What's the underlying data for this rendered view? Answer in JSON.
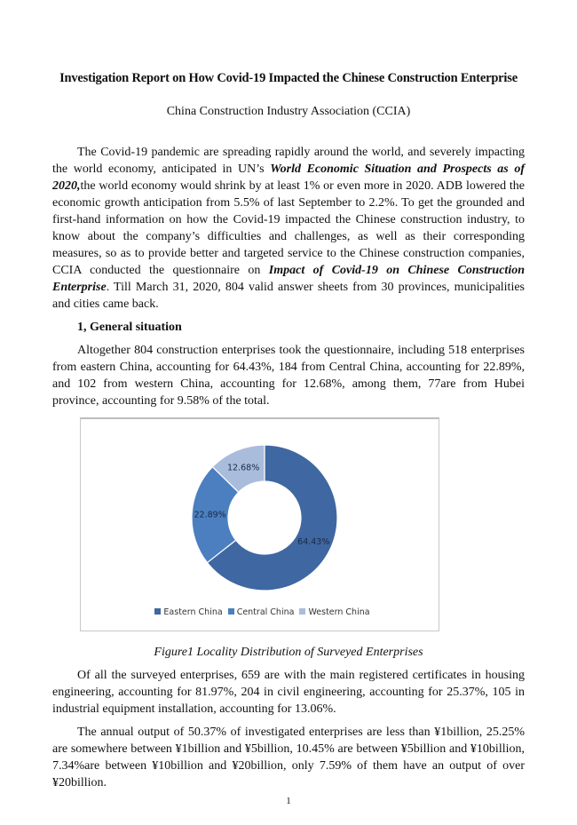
{
  "title": "Investigation Report on How Covid-19 Impacted the Chinese Construction Enterprise",
  "subtitle": "China Construction Industry Association (CCIA)",
  "intro": {
    "a": "The Covid-19 pandemic are spreading rapidly around the world, and severely impacting the world economy, anticipated in UN’s ",
    "b": "World Economic Situation and Prospects as of 2020,",
    "c": "the world economy would shrink by at least 1% or even more in 2020. ADB lowered the economic growth anticipation from 5.5% of last September to 2.2%. To get the grounded and first-hand information on how the Covid-19 impacted the Chinese construction industry, to know about the company’s difficulties and challenges, as well as their corresponding measures, so as to provide better and targeted service to the Chinese construction companies, CCIA conducted the questionnaire on ",
    "d": "Impact of Covid-19 on Chinese Construction Enterprise",
    "e": ". Till March 31, 2020, 804 valid answer sheets from 30 provinces, municipalities and cities came back."
  },
  "section1_heading": "1, General situation",
  "section1_para": "Altogether 804 construction enterprises took the questionnaire, including 518 enterprises from eastern China, accounting for 64.43%, 184 from Central China, accounting for 22.89%, and 102 from western China, accounting for 12.68%, among them, 77are from Hubei province, accounting for 9.58% of the total.",
  "chart_data": {
    "type": "pie",
    "subtype": "donut",
    "categories": [
      "Eastern China",
      "Central China",
      "Western China"
    ],
    "values": [
      64.43,
      22.89,
      12.68
    ],
    "labels": [
      "64.43%",
      "22.89%",
      "12.68%"
    ],
    "colors": [
      "#3f67a2",
      "#4b7fc0",
      "#a9bcdc"
    ],
    "legend_position": "bottom"
  },
  "caption": "Figure1 Locality Distribution of Surveyed Enterprises",
  "para3": "Of all the surveyed enterprises, 659 are with the main registered certificates in housing engineering, accounting for 81.97%, 204 in civil engineering, accounting for 25.37%, 105 in industrial equipment installation, accounting for 13.06%.",
  "para4": "The annual output of 50.37% of investigated enterprises are less than ¥1billion, 25.25% are somewhere between ¥1billion and ¥5billion, 10.45% are between ¥5billion and ¥10billion, 7.34%are between ¥10billion and ¥20billion, only 7.59% of them have an output of over ¥20billion.",
  "page_number": "1"
}
